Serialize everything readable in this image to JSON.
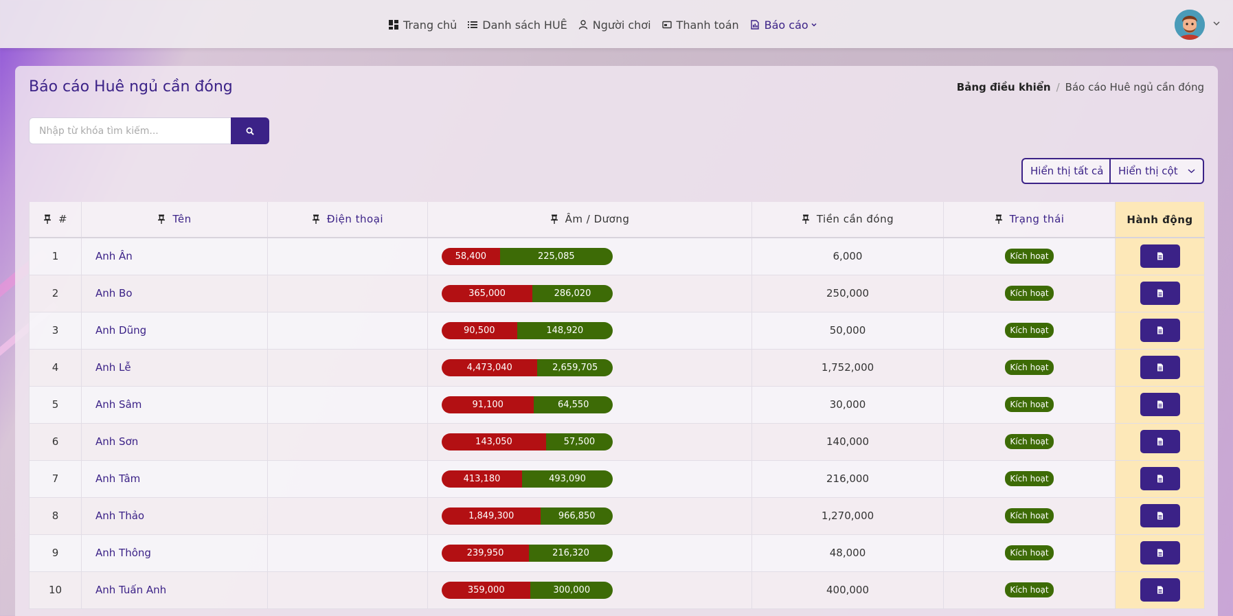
{
  "nav": {
    "items": [
      {
        "label": "Trang chủ",
        "icon": "dashboard-icon"
      },
      {
        "label": "Danh sách HUÊ",
        "icon": "list-icon"
      },
      {
        "label": "Người chơi",
        "icon": "user-icon"
      },
      {
        "label": "Thanh toán",
        "icon": "payment-icon"
      },
      {
        "label": "Báo cáo",
        "icon": "report-icon",
        "active": true
      }
    ]
  },
  "page": {
    "title": "Báo cáo Huê ngủ cần đóng",
    "breadcrumb": {
      "home": "Bảng điều khiển",
      "sep": "/",
      "current": "Báo cáo Huê ngủ cần đóng"
    }
  },
  "search": {
    "placeholder": "Nhập từ khóa tìm kiếm..."
  },
  "buttons": {
    "show_all": "Hiển thị tất cả",
    "show_columns": "Hiển thị cột"
  },
  "table": {
    "headers": {
      "index": "#",
      "name": "Tên",
      "phone": "Điện thoại",
      "balance": "Âm / Dương",
      "due": "Tiền cần đóng",
      "status": "Trạng thái",
      "action": "Hành động"
    },
    "rows": [
      {
        "index": "1",
        "name": "Anh Ân",
        "phone": "",
        "neg": "58,400",
        "pos": "225,085",
        "neg_share": 0.34,
        "due": "6,000",
        "status": "Kích hoạt"
      },
      {
        "index": "2",
        "name": "Anh Bo",
        "phone": "",
        "neg": "365,000",
        "pos": "286,020",
        "neg_share": 0.53,
        "due": "250,000",
        "status": "Kích hoạt"
      },
      {
        "index": "3",
        "name": "Anh Dũng",
        "phone": "",
        "neg": "90,500",
        "pos": "148,920",
        "neg_share": 0.44,
        "due": "50,000",
        "status": "Kích hoạt"
      },
      {
        "index": "4",
        "name": "Anh Lễ",
        "phone": "",
        "neg": "4,473,040",
        "pos": "2,659,705",
        "neg_share": 0.56,
        "due": "1,752,000",
        "status": "Kích hoạt"
      },
      {
        "index": "5",
        "name": "Anh Sâm",
        "phone": "",
        "neg": "91,100",
        "pos": "64,550",
        "neg_share": 0.54,
        "due": "30,000",
        "status": "Kích hoạt"
      },
      {
        "index": "6",
        "name": "Anh Sơn",
        "phone": "",
        "neg": "143,050",
        "pos": "57,500",
        "neg_share": 0.61,
        "due": "140,000",
        "status": "Kích hoạt"
      },
      {
        "index": "7",
        "name": "Anh Tâm",
        "phone": "",
        "neg": "413,180",
        "pos": "493,090",
        "neg_share": 0.47,
        "due": "216,000",
        "status": "Kích hoạt"
      },
      {
        "index": "8",
        "name": "Anh Thảo",
        "phone": "",
        "neg": "1,849,300",
        "pos": "966,850",
        "neg_share": 0.58,
        "due": "1,270,000",
        "status": "Kích hoạt"
      },
      {
        "index": "9",
        "name": "Anh Thông",
        "phone": "",
        "neg": "239,950",
        "pos": "216,320",
        "neg_share": 0.51,
        "due": "48,000",
        "status": "Kích hoạt"
      },
      {
        "index": "10",
        "name": "Anh Tuấn Anh",
        "phone": "",
        "neg": "359,000",
        "pos": "300,000",
        "neg_share": 0.52,
        "due": "400,000",
        "status": "Kích hoạt"
      }
    ]
  },
  "colors": {
    "primary": "#3b2287",
    "negative": "#b31013",
    "positive": "#3d6b06",
    "action_col": "#fde8b8"
  }
}
